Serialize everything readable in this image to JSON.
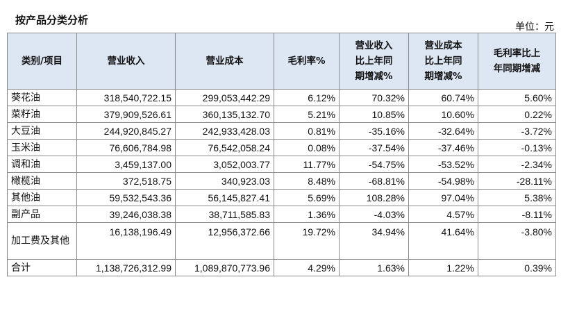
{
  "title": "按产品分类分析",
  "unit": "单位：元",
  "headers": [
    "类别/项目",
    "营业收入",
    "营业成本",
    "毛利率%",
    "营业收入\n比上年同\n期增减%",
    "营业成本\n比上年同\n期增减%",
    "毛利率比上\n年同期增减"
  ],
  "rows": [
    {
      "name": "葵花油",
      "revenue": "318,540,722.15",
      "cost": "299,053,442.29",
      "margin": "6.12%",
      "rev_chg": "70.32%",
      "cost_chg": "60.74%",
      "margin_chg": "5.60%"
    },
    {
      "name": "菜籽油",
      "revenue": "379,909,526.61",
      "cost": "360,135,132.70",
      "margin": "5.21%",
      "rev_chg": "10.85%",
      "cost_chg": "10.60%",
      "margin_chg": "0.22%"
    },
    {
      "name": "大豆油",
      "revenue": "244,920,845.27",
      "cost": "242,933,428.03",
      "margin": "0.81%",
      "rev_chg": "-35.16%",
      "cost_chg": "-32.64%",
      "margin_chg": "-3.72%"
    },
    {
      "name": "玉米油",
      "revenue": "76,606,784.98",
      "cost": "76,542,058.24",
      "margin": "0.08%",
      "rev_chg": "-37.54%",
      "cost_chg": "-37.46%",
      "margin_chg": "-0.13%"
    },
    {
      "name": "调和油",
      "revenue": "3,459,137.00",
      "cost": "3,052,003.77",
      "margin": "11.77%",
      "rev_chg": "-54.75%",
      "cost_chg": "-53.52%",
      "margin_chg": "-2.34%"
    },
    {
      "name": "橄榄油",
      "revenue": "372,518.75",
      "cost": "340,923.03",
      "margin": "8.48%",
      "rev_chg": "-68.81%",
      "cost_chg": "-54.98%",
      "margin_chg": "-28.11%"
    },
    {
      "name": "其他油",
      "revenue": "59,532,543.36",
      "cost": "56,145,827.41",
      "margin": "5.69%",
      "rev_chg": "108.28%",
      "cost_chg": "97.04%",
      "margin_chg": "5.38%"
    },
    {
      "name": "副产品",
      "revenue": "39,246,038.38",
      "cost": "38,711,585.83",
      "margin": "1.36%",
      "rev_chg": "-4.03%",
      "cost_chg": "4.57%",
      "margin_chg": "-8.11%"
    },
    {
      "name": "加工费及其他",
      "revenue": "16,138,196.49",
      "cost": "12,956,372.66",
      "margin": "19.72%",
      "rev_chg": "34.94%",
      "cost_chg": "41.64%",
      "margin_chg": "-3.80%"
    },
    {
      "name": "合计",
      "revenue": "1,138,726,312.99",
      "cost": "1,089,870,773.96",
      "margin": "4.29%",
      "rev_chg": "1.63%",
      "cost_chg": "1.22%",
      "margin_chg": "0.39%"
    }
  ]
}
